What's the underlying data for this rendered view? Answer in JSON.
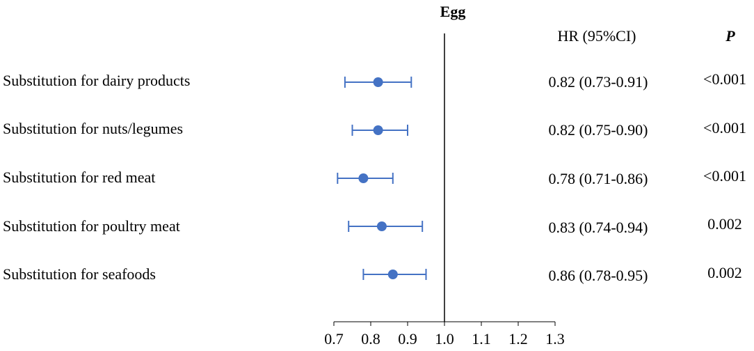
{
  "chart_data": {
    "type": "forest",
    "title": "Egg",
    "columns": {
      "hr_header": "HR (95%CI)",
      "p_header": "P"
    },
    "rows": [
      {
        "label": "Substitution for dairy products",
        "hr": 0.82,
        "lower": 0.73,
        "upper": 0.91,
        "hr_text": "0.82 (0.73-0.91)",
        "p_text": "<0.001"
      },
      {
        "label": "Substitution for nuts/legumes",
        "hr": 0.82,
        "lower": 0.75,
        "upper": 0.9,
        "hr_text": "0.82 (0.75-0.90)",
        "p_text": "<0.001"
      },
      {
        "label": "Substitution for red meat",
        "hr": 0.78,
        "lower": 0.71,
        "upper": 0.86,
        "hr_text": "0.78 (0.71-0.86)",
        "p_text": "<0.001"
      },
      {
        "label": "Substitution for poultry meat",
        "hr": 0.83,
        "lower": 0.74,
        "upper": 0.94,
        "hr_text": "0.83 (0.74-0.94)",
        "p_text": "0.002"
      },
      {
        "label": "Substitution for seafoods",
        "hr": 0.86,
        "lower": 0.78,
        "upper": 0.95,
        "hr_text": "0.86 (0.78-0.95)",
        "p_text": "0.002"
      }
    ],
    "xlim": [
      0.7,
      1.3
    ],
    "xticks": [
      0.7,
      0.8,
      0.9,
      1.0,
      1.1,
      1.2,
      1.3
    ],
    "xtick_labels": [
      "0.7",
      "0.8",
      "0.9",
      "1.0",
      "1.1",
      "1.2",
      "1.3"
    ],
    "reference_line": 1.0,
    "marker_color": "#4472C4"
  }
}
